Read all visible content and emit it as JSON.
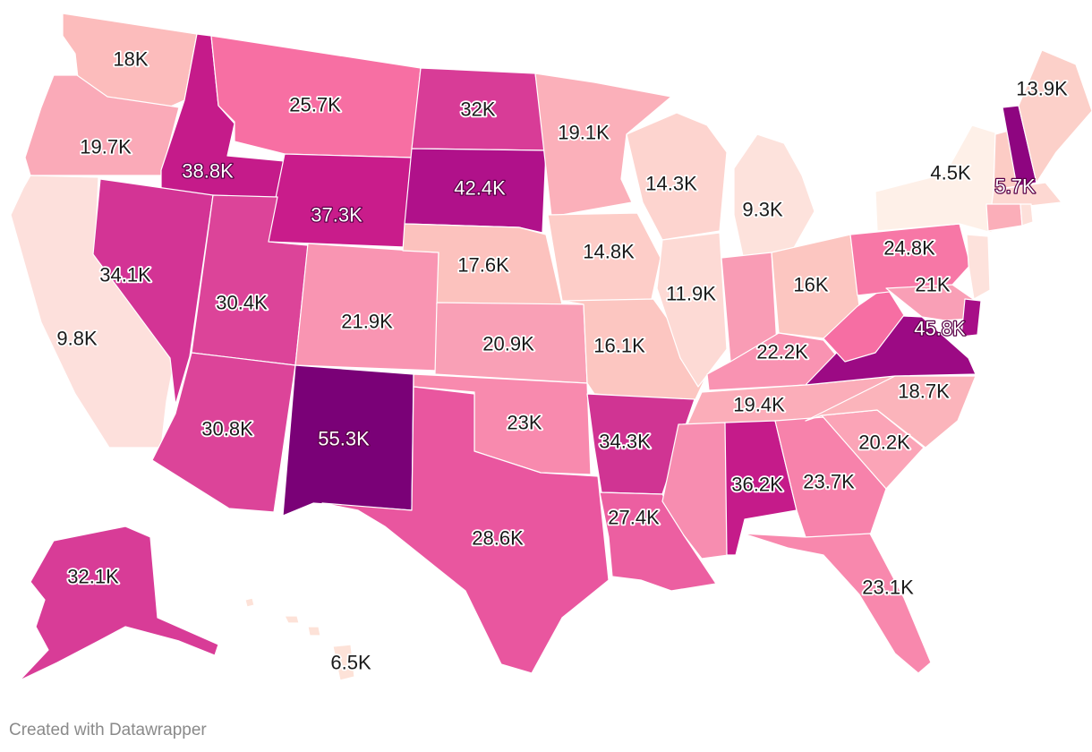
{
  "credit": "Created with Datawrapper",
  "map": {
    "type": "choropleth",
    "region": "United States",
    "colors": {
      "light": "#fdf0e8",
      "dark": "#7a0177"
    },
    "states": [
      {
        "name": "WA",
        "label": "18K",
        "value": 18000,
        "color": "#fcbcbc"
      },
      {
        "name": "OR",
        "label": "19.7K",
        "value": 19700,
        "color": "#faaab8"
      },
      {
        "name": "CA",
        "label": "9.8K",
        "value": 9800,
        "color": "#fde0dc"
      },
      {
        "name": "ID",
        "label": "38.8K",
        "value": 38800,
        "color": "#c51b8a"
      },
      {
        "name": "NV",
        "label": "34.1K",
        "value": 34100,
        "color": "#d33495"
      },
      {
        "name": "MT",
        "label": "25.7K",
        "value": 25700,
        "color": "#f76fa3"
      },
      {
        "name": "WY",
        "label": "37.3K",
        "value": 37300,
        "color": "#c91c8b"
      },
      {
        "name": "UT",
        "label": "30.4K",
        "value": 30400,
        "color": "#dc4499"
      },
      {
        "name": "AZ",
        "label": "30.8K",
        "value": 30800,
        "color": "#dc4499"
      },
      {
        "name": "CO",
        "label": "21.9K",
        "value": 21900,
        "color": "#f995b2"
      },
      {
        "name": "NM",
        "label": "55.3K",
        "value": 55300,
        "color": "#7a0177"
      },
      {
        "name": "ND",
        "label": "32K",
        "value": 32000,
        "color": "#d83c97"
      },
      {
        "name": "SD",
        "label": "42.4K",
        "value": 42400,
        "color": "#b0118a"
      },
      {
        "name": "NE",
        "label": "17.6K",
        "value": 17600,
        "color": "#fcc2be"
      },
      {
        "name": "KS",
        "label": "20.9K",
        "value": 20900,
        "color": "#f9a0b6"
      },
      {
        "name": "OK",
        "label": "23K",
        "value": 23000,
        "color": "#f88aae"
      },
      {
        "name": "TX",
        "label": "28.6K",
        "value": 28600,
        "color": "#e9569f"
      },
      {
        "name": "MN",
        "label": "19.1K",
        "value": 19100,
        "color": "#fbb0ba"
      },
      {
        "name": "IA",
        "label": "14.8K",
        "value": 14800,
        "color": "#fdcdc8"
      },
      {
        "name": "MO",
        "label": "16.1K",
        "value": 16100,
        "color": "#fcc6c1"
      },
      {
        "name": "AR",
        "label": "34.3K",
        "value": 34300,
        "color": "#d03493"
      },
      {
        "name": "LA",
        "label": "27.4K",
        "value": 27400,
        "color": "#ec5fa1"
      },
      {
        "name": "WI",
        "label": "14.3K",
        "value": 14300,
        "color": "#fdd4cf"
      },
      {
        "name": "IL",
        "label": "11.9K",
        "value": 11900,
        "color": "#fddad5"
      },
      {
        "name": "MI",
        "label": "9.3K",
        "value": 9300,
        "color": "#fde2dc"
      },
      {
        "name": "IN",
        "label": "",
        "value": null,
        "color": "#f99cb5"
      },
      {
        "name": "OH",
        "label": "16K",
        "value": 16000,
        "color": "#fcc6c1"
      },
      {
        "name": "KY",
        "label": "22.2K",
        "value": 22200,
        "color": "#f993b2"
      },
      {
        "name": "TN",
        "label": "19.4K",
        "value": 19400,
        "color": "#fbadb9"
      },
      {
        "name": "MS",
        "label": "",
        "value": null,
        "color": "#f78db0"
      },
      {
        "name": "AL",
        "label": "36.2K",
        "value": 36200,
        "color": "#c51b8a"
      },
      {
        "name": "GA",
        "label": "23.7K",
        "value": 23700,
        "color": "#f782ab"
      },
      {
        "name": "FL",
        "label": "23.1K",
        "value": 23100,
        "color": "#f888ad"
      },
      {
        "name": "SC",
        "label": "20.2K",
        "value": 20200,
        "color": "#fba4b7"
      },
      {
        "name": "NC",
        "label": "18.7K",
        "value": 18700,
        "color": "#fbb4bb"
      },
      {
        "name": "VA",
        "label": "45.8K",
        "value": 45800,
        "color": "#9c0a84"
      },
      {
        "name": "WV",
        "label": "",
        "value": null,
        "color": "#f66ea3"
      },
      {
        "name": "PA",
        "label": "24.8K",
        "value": 24800,
        "color": "#f777a6"
      },
      {
        "name": "NY",
        "label": "4.5K",
        "value": 4500,
        "color": "#fef0e8"
      },
      {
        "name": "NJ",
        "label": "",
        "value": null,
        "color": "#fde2dc"
      },
      {
        "name": "MD",
        "label": "21K",
        "value": 21000,
        "color": "#f99fb6"
      },
      {
        "name": "DE",
        "label": "",
        "value": null,
        "color": "#a70e87"
      },
      {
        "name": "VT",
        "label": "",
        "value": null,
        "color": "#fcccc5"
      },
      {
        "name": "NH",
        "label": "5.7K",
        "value": 5700,
        "color": "#8e0580"
      },
      {
        "name": "ME",
        "label": "13.9K",
        "value": 13900,
        "color": "#fcd0c9"
      },
      {
        "name": "MA",
        "label": "",
        "value": null,
        "color": "#fdd8d2"
      },
      {
        "name": "CT",
        "label": "",
        "value": null,
        "color": "#fbaeb9"
      },
      {
        "name": "RI",
        "label": "",
        "value": null,
        "color": "#fde0da"
      },
      {
        "name": "AK",
        "label": "32.1K",
        "value": 32100,
        "color": "#d83c97"
      },
      {
        "name": "HI",
        "label": "6.5K",
        "value": 6500,
        "color": "#fde2d8"
      }
    ]
  }
}
